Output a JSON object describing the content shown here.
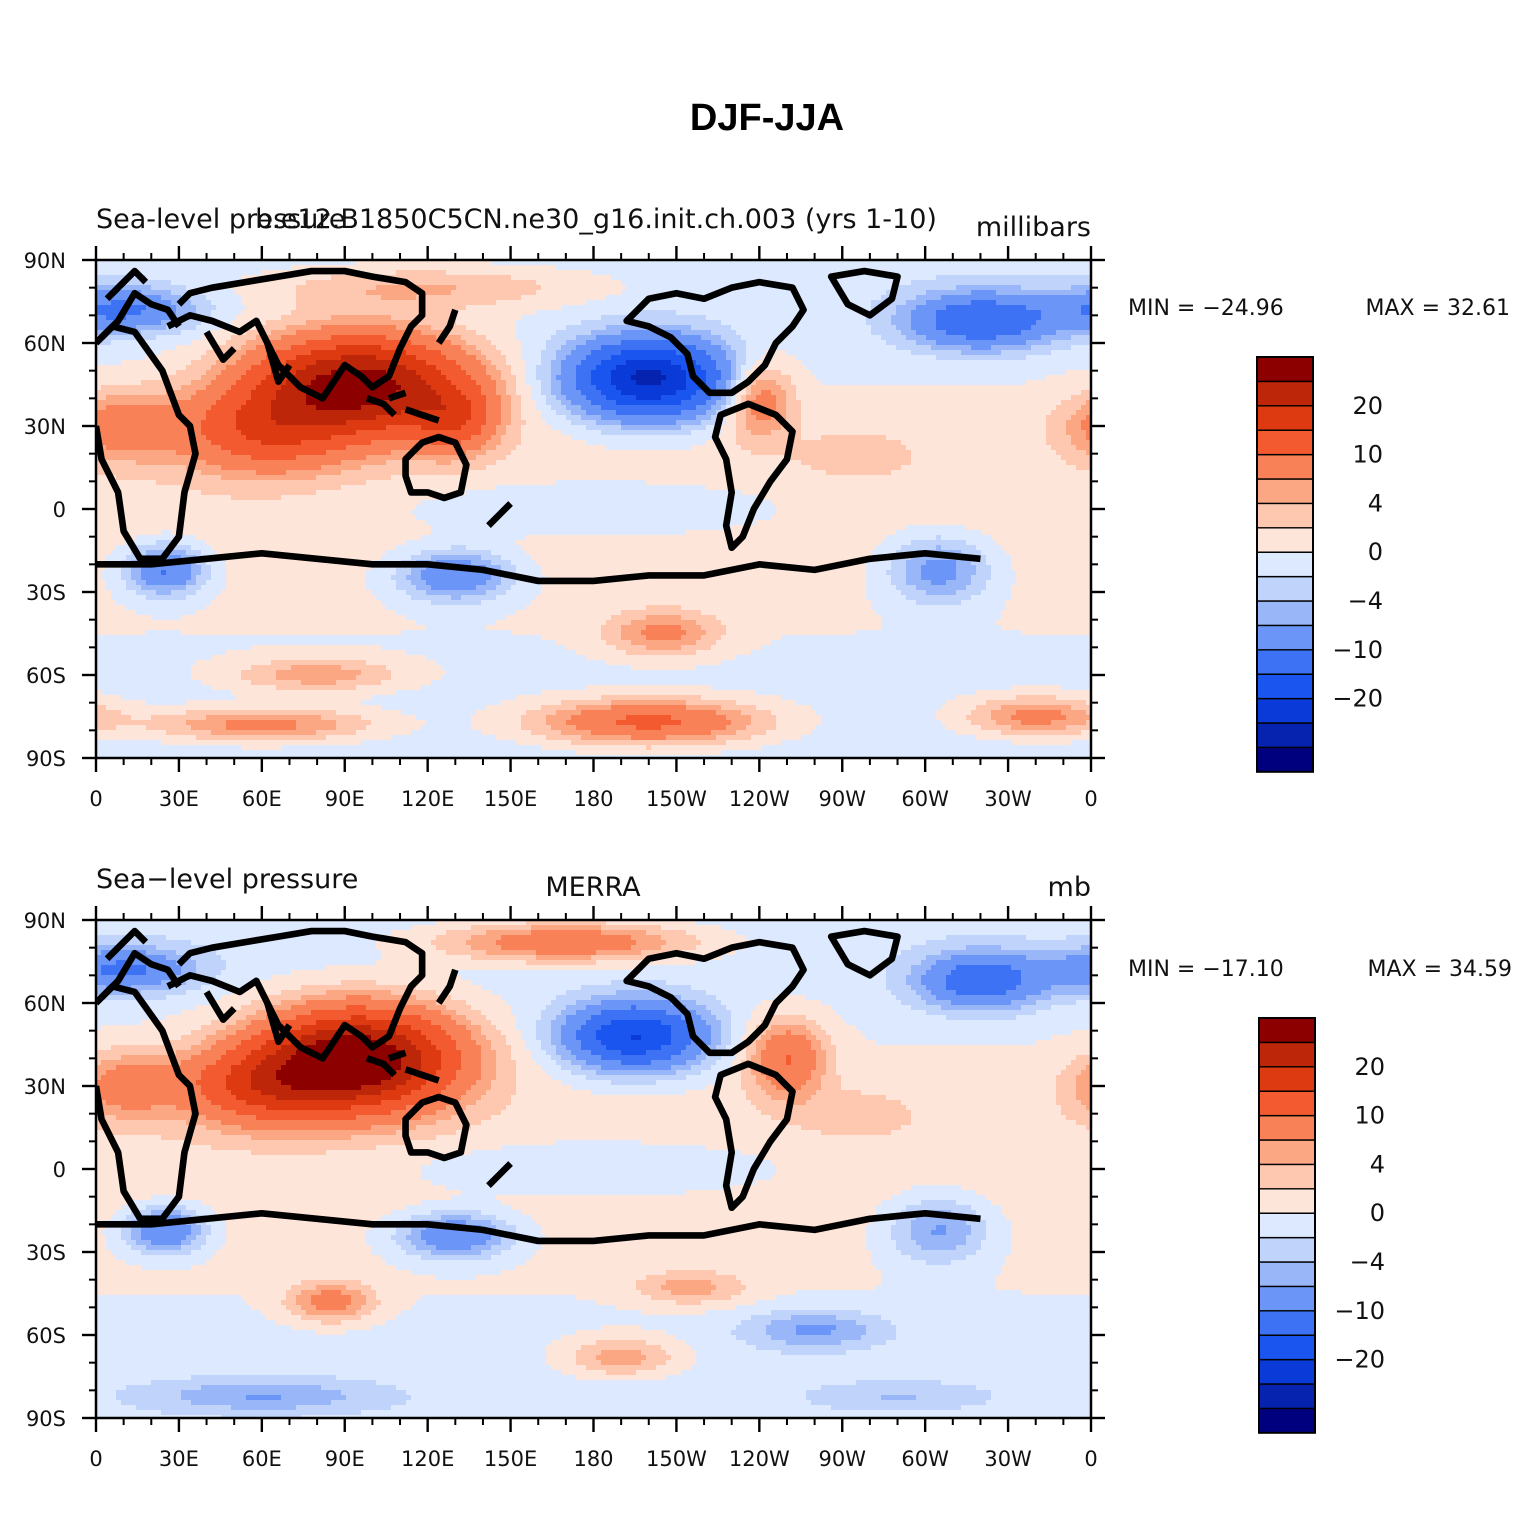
{
  "figure": {
    "title": "DJF-JJA"
  },
  "colors": {
    "levels": [
      "#00007f",
      "#0623b0",
      "#0a3ad8",
      "#1a55f0",
      "#3d72f5",
      "#6b95f6",
      "#98b6f8",
      "#c0d4fb",
      "#dde9fe",
      "#fde6d9",
      "#fdc8af",
      "#fca783",
      "#f98157",
      "#f45a2f",
      "#dd3a12",
      "#bd2608",
      "#8c0000"
    ]
  },
  "chart_data": [
    {
      "type": "contour-map",
      "panel": "model",
      "left_title": "Sea-level pressure",
      "center_title": "b.e12.B1850C5CN.ne30_g16.init.ch.003 (yrs 1-10)",
      "right_title": "millibars",
      "min_label": "MIN = −24.96",
      "max_label": "MAX =   32.61",
      "min": -24.96,
      "max": 32.61,
      "x_ticks": [
        "0",
        "30E",
        "60E",
        "90E",
        "120E",
        "150E",
        "180",
        "150W",
        "120W",
        "90W",
        "60W",
        "30W",
        "0"
      ],
      "y_ticks": [
        "90N",
        "60N",
        "30N",
        "0",
        "30S",
        "60S",
        "90S"
      ],
      "colorbar_labels": [
        "20",
        "10",
        "4",
        "0",
        "−4",
        "−10",
        "−20"
      ],
      "fields": [
        {
          "lon": 95,
          "lat": 45,
          "amp": 28,
          "sx": 38,
          "sy": 18
        },
        {
          "lon": 60,
          "lat": 28,
          "amp": 12,
          "sx": 30,
          "sy": 15
        },
        {
          "lon": 10,
          "lat": 30,
          "amp": 8,
          "sx": 20,
          "sy": 12
        },
        {
          "lon": 130,
          "lat": 32,
          "amp": 10,
          "sx": 15,
          "sy": 12
        },
        {
          "lon": 200,
          "lat": 47,
          "amp": -26,
          "sx": 28,
          "sy": 14
        },
        {
          "lon": 320,
          "lat": 68,
          "amp": -14,
          "sx": 26,
          "sy": 10
        },
        {
          "lon": 240,
          "lat": 40,
          "amp": 9,
          "sx": 12,
          "sy": 14
        },
        {
          "lon": 10,
          "lat": 72,
          "amp": -10,
          "sx": 25,
          "sy": 8
        },
        {
          "lon": 120,
          "lat": 80,
          "amp": 5,
          "sx": 60,
          "sy": 8
        },
        {
          "lon": 25,
          "lat": -22,
          "amp": -11,
          "sx": 14,
          "sy": 9
        },
        {
          "lon": 130,
          "lat": -24,
          "amp": -10,
          "sx": 20,
          "sy": 9
        },
        {
          "lon": 305,
          "lat": -22,
          "amp": -8,
          "sx": 18,
          "sy": 12
        },
        {
          "lon": 205,
          "lat": -45,
          "amp": 7,
          "sx": 20,
          "sy": 8
        },
        {
          "lon": 80,
          "lat": -60,
          "amp": 6,
          "sx": 30,
          "sy": 6
        },
        {
          "lon": 200,
          "lat": -77,
          "amp": 12,
          "sx": 40,
          "sy": 8
        },
        {
          "lon": 60,
          "lat": -78,
          "amp": 8,
          "sx": 40,
          "sy": 6
        },
        {
          "lon": 340,
          "lat": -75,
          "amp": 8,
          "sx": 25,
          "sy": 7
        },
        {
          "lon": 180,
          "lat": 0,
          "amp": -3,
          "sx": 70,
          "sy": 10
        },
        {
          "lon": 275,
          "lat": 20,
          "amp": 3,
          "sx": 20,
          "sy": 8
        }
      ]
    },
    {
      "type": "contour-map",
      "panel": "obs",
      "left_title": "Sea−level pressure",
      "center_title": "MERRA",
      "right_title": "mb",
      "min_label": "MIN = −17.10",
      "max_label": "MAX =   34.59",
      "min": -17.1,
      "max": 34.59,
      "x_ticks": [
        "0",
        "30E",
        "60E",
        "90E",
        "120E",
        "150E",
        "180",
        "150W",
        "120W",
        "90W",
        "60W",
        "30W",
        "0"
      ],
      "y_ticks": [
        "90N",
        "60N",
        "30N",
        "0",
        "30S",
        "60S",
        "90S"
      ],
      "colorbar_labels": [
        "20",
        "10",
        "4",
        "0",
        "−4",
        "−10",
        "−20"
      ],
      "fields": [
        {
          "lon": 95,
          "lat": 40,
          "amp": 30,
          "sx": 35,
          "sy": 18
        },
        {
          "lon": 60,
          "lat": 30,
          "amp": 13,
          "sx": 30,
          "sy": 14
        },
        {
          "lon": 10,
          "lat": 30,
          "amp": 7,
          "sx": 18,
          "sy": 12
        },
        {
          "lon": 170,
          "lat": 82,
          "amp": 10,
          "sx": 45,
          "sy": 7
        },
        {
          "lon": 195,
          "lat": 48,
          "amp": -20,
          "sx": 25,
          "sy": 12
        },
        {
          "lon": 320,
          "lat": 68,
          "amp": -13,
          "sx": 22,
          "sy": 10
        },
        {
          "lon": 250,
          "lat": 40,
          "amp": 10,
          "sx": 14,
          "sy": 14
        },
        {
          "lon": 10,
          "lat": 72,
          "amp": -10,
          "sx": 25,
          "sy": 8
        },
        {
          "lon": 25,
          "lat": -22,
          "amp": -11,
          "sx": 14,
          "sy": 8
        },
        {
          "lon": 130,
          "lat": -24,
          "amp": -10,
          "sx": 20,
          "sy": 8
        },
        {
          "lon": 305,
          "lat": -22,
          "amp": -7,
          "sx": 18,
          "sy": 12
        },
        {
          "lon": 85,
          "lat": -48,
          "amp": 8,
          "sx": 15,
          "sy": 7
        },
        {
          "lon": 215,
          "lat": -43,
          "amp": 5,
          "sx": 20,
          "sy": 6
        },
        {
          "lon": 260,
          "lat": -58,
          "amp": -6,
          "sx": 25,
          "sy": 7
        },
        {
          "lon": 190,
          "lat": -68,
          "amp": 6,
          "sx": 20,
          "sy": 7
        },
        {
          "lon": 60,
          "lat": -82,
          "amp": -5,
          "sx": 40,
          "sy": 6
        },
        {
          "lon": 290,
          "lat": -82,
          "amp": -3,
          "sx": 30,
          "sy": 5
        },
        {
          "lon": 180,
          "lat": 0,
          "amp": -3,
          "sx": 70,
          "sy": 10
        },
        {
          "lon": 275,
          "lat": 20,
          "amp": 3,
          "sx": 20,
          "sy": 8
        }
      ]
    }
  ]
}
